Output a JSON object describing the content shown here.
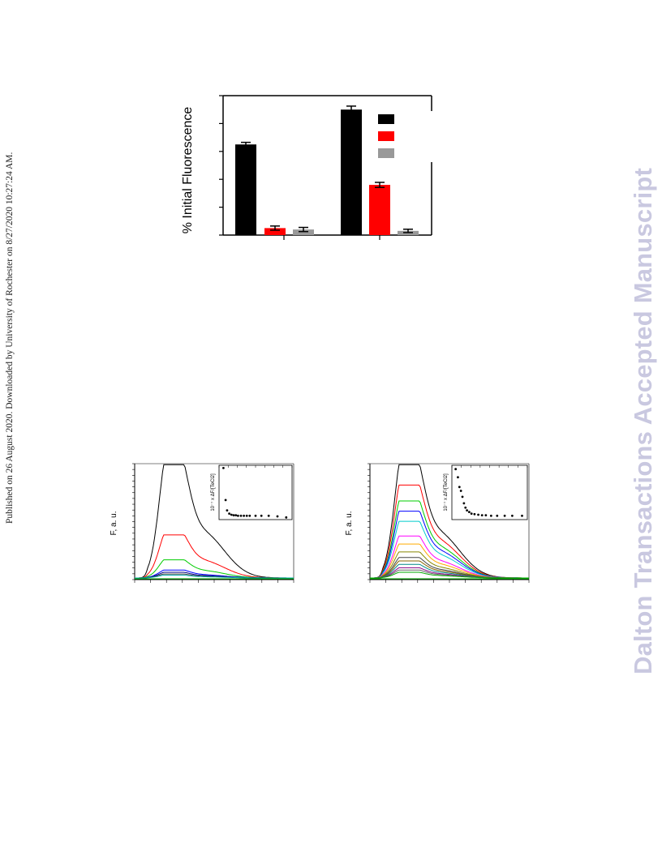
{
  "page": {
    "published_note": "Published on 26 August 2020. Downloaded by University of Rochester on 8/27/2020 10:27:24 AM.",
    "watermark": "Dalton Transactions Accepted Manuscript"
  },
  "chart_data": [
    {
      "type": "bar",
      "ylabel": "% Initial Fluorescence",
      "groups": 2,
      "series": [
        {
          "color": "#000000",
          "values": [
            65,
            90
          ],
          "errors": [
            1.5,
            2.5
          ]
        },
        {
          "color": "#ff0000",
          "values": [
            5,
            36
          ],
          "errors": [
            1.5,
            1.8
          ]
        },
        {
          "color": "#999999",
          "values": [
            4,
            3
          ],
          "errors": [
            1.5,
            1.2
          ]
        }
      ],
      "ylim": [
        0,
        100
      ],
      "legend": "top-right"
    },
    {
      "type": "line",
      "ylabel": "F, a. u.",
      "inset": {
        "type": "scatter",
        "ylabel": "10⁻⁷ x ΔF/[TeCl2]"
      },
      "series_colors": [
        "#000000",
        "#ff0000",
        "#00cc00",
        "#0000ff",
        "#000080",
        "#444444",
        "#00aaaa"
      ],
      "peak_values": [
        100,
        38,
        16,
        7,
        5,
        3.5,
        2.5
      ]
    },
    {
      "type": "line",
      "ylabel": "F, a. u.",
      "inset": {
        "type": "scatter",
        "ylabel": "10⁻⁷ x ΔF/[TeCl2]"
      },
      "series_colors": [
        "#000000",
        "#ff0000",
        "#00cc00",
        "#0000ff",
        "#00cccc",
        "#ff00ff",
        "#ffaa00",
        "#888800",
        "#444444",
        "#886600",
        "#008888",
        "#880088",
        "#666666",
        "#00aa00"
      ],
      "peak_values": [
        100,
        82,
        68,
        59,
        50,
        37,
        30,
        23,
        18,
        15,
        12,
        9,
        7,
        5
      ]
    }
  ]
}
